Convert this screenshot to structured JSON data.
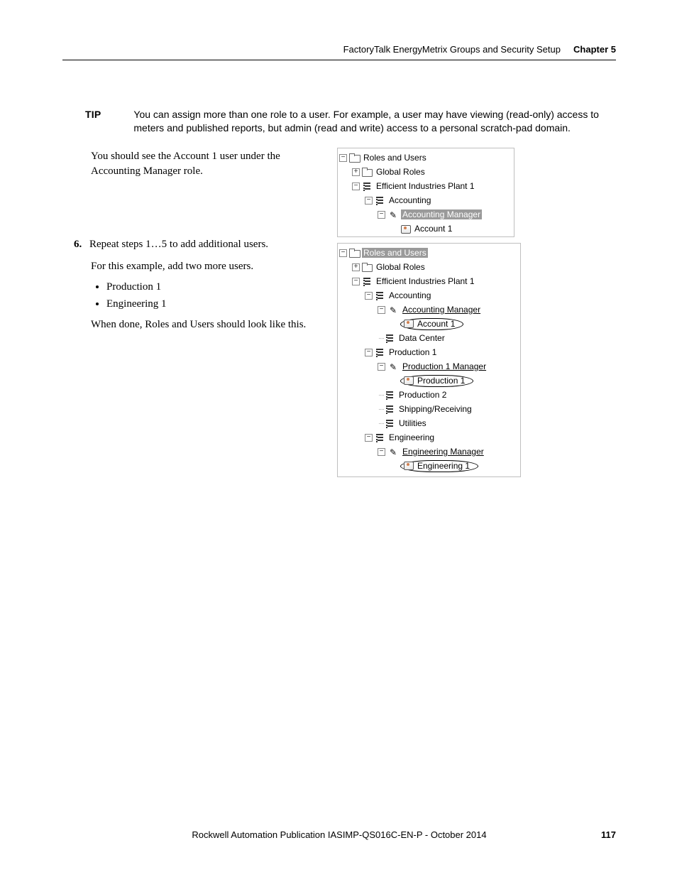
{
  "header": {
    "section_title": "FactoryTalk EnergyMetrix Groups and Security Setup",
    "chapter_label": "Chapter 5"
  },
  "tip": {
    "label": "TIP",
    "text": "You can assign more than one role to a user. For example, a user may have viewing (read-only) access to meters and published reports, but admin (read and write) access to a personal scratch-pad domain."
  },
  "paragraph1": "You should see the Account 1 user under the Accounting Manager role.",
  "step6": {
    "number": "6.",
    "line1": "Repeat steps 1…5 to add additional users.",
    "line2": "For this example, add two more users.",
    "bullets": [
      "Production 1",
      "Engineering 1"
    ],
    "line3": "When done, Roles and Users should look like this."
  },
  "tree1": {
    "roles_users": "Roles and Users",
    "global_roles": "Global Roles",
    "plant": "Efficient Industries Plant 1",
    "accounting": "Accounting",
    "acct_mgr": "Accounting Manager",
    "account1": "Account 1"
  },
  "tree2": {
    "roles_users": "Roles and Users",
    "global_roles": "Global Roles",
    "plant": "Efficient Industries Plant 1",
    "accounting": "Accounting",
    "acct_mgr": "Accounting Manager",
    "account1": "Account 1",
    "data_center": "Data Center",
    "prod1": "Production 1",
    "prod1_mgr": "Production 1 Manager",
    "prod1_user": "Production 1",
    "prod2": "Production 2",
    "ship_recv": "Shipping/Receiving",
    "utilities": "Utilities",
    "engineering": "Engineering",
    "eng_mgr": "Engineering Manager",
    "eng1": "Engineering 1"
  },
  "footer": {
    "publication": "Rockwell Automation Publication IASIMP-QS016C-EN-P - October 2014",
    "page": "117"
  }
}
